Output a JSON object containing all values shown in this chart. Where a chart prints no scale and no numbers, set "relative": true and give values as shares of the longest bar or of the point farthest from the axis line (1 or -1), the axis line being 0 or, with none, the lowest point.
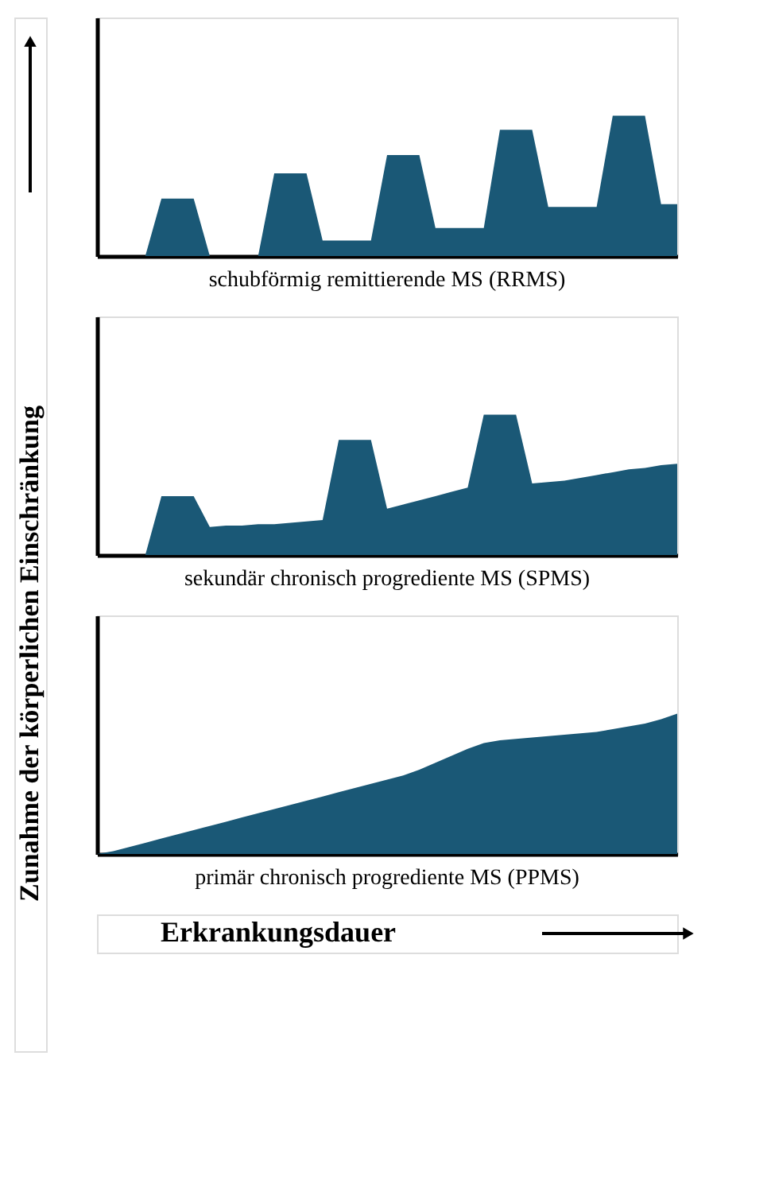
{
  "chart_data": [
    {
      "type": "area",
      "relative": true,
      "title": "schubförmig  remittierende MS (RRMS)",
      "ylabel": "Zunahme der körperlichen Einschränkung",
      "categories": [
        null,
        null,
        null,
        null,
        null,
        null,
        null,
        null,
        null,
        null,
        null,
        null,
        null,
        null,
        null,
        null,
        null,
        null,
        null,
        null,
        null,
        null,
        null,
        null,
        null,
        null,
        null,
        null,
        null,
        null,
        null,
        null,
        null,
        null,
        null,
        null,
        null
      ],
      "series": [
        {
          "color": "#1a5876",
          "values": [
            0,
            0,
            0,
            0,
            0.41,
            0.41,
            0.41,
            0,
            0,
            0,
            0,
            0.59,
            0.59,
            0.59,
            0.11,
            0.11,
            0.11,
            0.11,
            0.72,
            0.72,
            0.72,
            0.2,
            0.2,
            0.2,
            0.2,
            0.9,
            0.9,
            0.9,
            0.35,
            0.35,
            0.35,
            0.35,
            1,
            1,
            1,
            0.37,
            0.37
          ]
        }
      ],
      "tick_labels": false,
      "grid": false
    },
    {
      "type": "area",
      "relative": true,
      "title": "sekundär  chronisch  progrediente  MS (SPMS)",
      "categories": [
        null,
        null,
        null,
        null,
        null,
        null,
        null,
        null,
        null,
        null,
        null,
        null,
        null,
        null,
        null,
        null,
        null,
        null,
        null,
        null,
        null,
        null,
        null,
        null,
        null,
        null,
        null,
        null,
        null,
        null,
        null,
        null,
        null,
        null,
        null,
        null,
        null
      ],
      "series": [
        {
          "color": "#1a5876",
          "values": [
            0,
            0,
            0,
            0,
            0.42,
            0.42,
            0.42,
            0.2,
            0.21,
            0.21,
            0.22,
            0.22,
            0.23,
            0.24,
            0.25,
            0.82,
            0.82,
            0.82,
            0.33,
            0.36,
            0.39,
            0.42,
            0.45,
            0.48,
            1,
            1,
            1,
            0.51,
            0.52,
            0.53,
            0.55,
            0.57,
            0.59,
            0.61,
            0.62,
            0.64,
            0.65
          ]
        }
      ],
      "tick_labels": false,
      "grid": false
    },
    {
      "type": "area",
      "relative": true,
      "title": "primär  chronisch  progrediente  MS (PPMS)",
      "xlabel": "Erkrankungsdauer",
      "categories": [
        null,
        null,
        null,
        null,
        null,
        null,
        null,
        null,
        null,
        null,
        null,
        null,
        null,
        null,
        null,
        null,
        null,
        null,
        null,
        null,
        null,
        null,
        null,
        null,
        null,
        null,
        null,
        null,
        null,
        null,
        null,
        null,
        null,
        null,
        null,
        null,
        null
      ],
      "series": [
        {
          "color": "#1a5876",
          "values": [
            0,
            0.02,
            0.05,
            0.08,
            0.11,
            0.14,
            0.17,
            0.2,
            0.23,
            0.26,
            0.29,
            0.32,
            0.35,
            0.38,
            0.41,
            0.44,
            0.47,
            0.5,
            0.53,
            0.56,
            0.6,
            0.65,
            0.7,
            0.75,
            0.79,
            0.81,
            0.82,
            0.83,
            0.84,
            0.85,
            0.86,
            0.87,
            0.89,
            0.91,
            0.93,
            0.96,
            1
          ]
        }
      ],
      "tick_labels": false,
      "grid": false
    }
  ]
}
